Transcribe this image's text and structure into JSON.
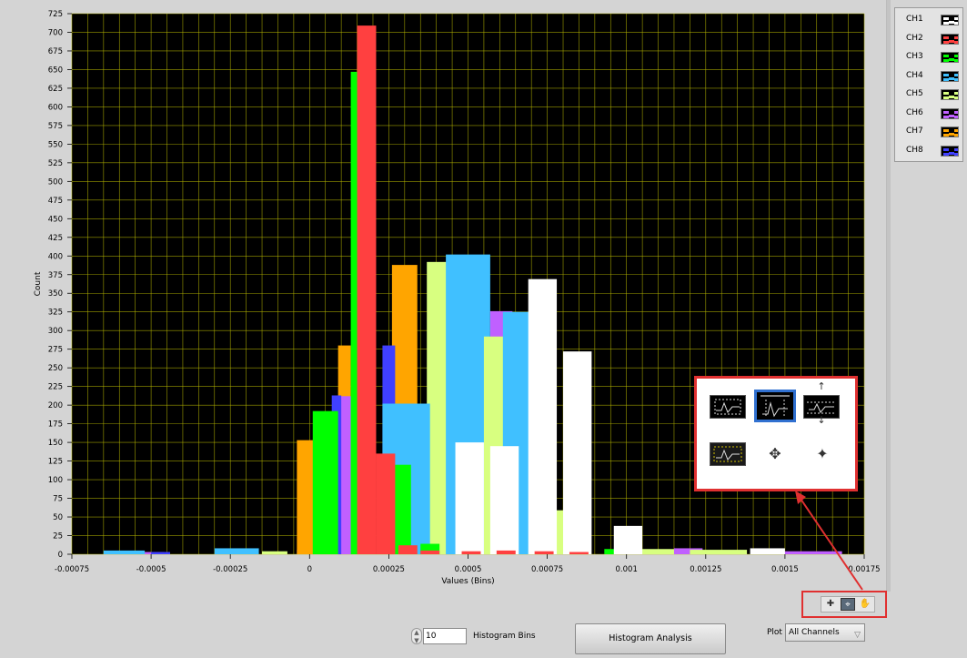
{
  "chart_data": {
    "type": "bar",
    "xlabel": "Values (Bins)",
    "ylabel": "Count",
    "xlim": [
      -0.00075,
      0.00175
    ],
    "ylim": [
      0,
      725
    ],
    "x_ticks": [
      "-0.00075",
      "-0.0005",
      "-0.00025",
      "0",
      "0.00025",
      "0.0005",
      "0.00075",
      "0.001",
      "0.00125",
      "0.0015",
      "0.00175"
    ],
    "y_ticks": [
      "0",
      "25",
      "50",
      "75",
      "100",
      "125",
      "150",
      "175",
      "200",
      "225",
      "250",
      "275",
      "300",
      "325",
      "350",
      "375",
      "400",
      "425",
      "450",
      "475",
      "500",
      "525",
      "550",
      "575",
      "600",
      "625",
      "650",
      "675",
      "700",
      "725"
    ],
    "grid": true,
    "background": "#000000",
    "grid_color": "#b8b800",
    "series": [
      {
        "name": "CH1",
        "color": "#ffffff",
        "bars": [
          {
            "x0": 0.00046,
            "x1": 0.00055,
            "y": 150
          },
          {
            "x0": 0.00057,
            "x1": 0.00066,
            "y": 145
          },
          {
            "x0": 0.00069,
            "x1": 0.00078,
            "y": 369
          },
          {
            "x0": 0.0008,
            "x1": 0.00089,
            "y": 272
          },
          {
            "x0": 0.00096,
            "x1": 0.00105,
            "y": 38
          },
          {
            "x0": 0.00139,
            "x1": 0.0015,
            "y": 8
          }
        ]
      },
      {
        "name": "CH2",
        "color": "#ff4040",
        "bars": [
          {
            "x0": 0.00015,
            "x1": 0.00021,
            "y": 709
          },
          {
            "x0": 0.00021,
            "x1": 0.00027,
            "y": 135
          },
          {
            "x0": 0.00028,
            "x1": 0.00034,
            "y": 12
          },
          {
            "x0": 0.00035,
            "x1": 0.00041,
            "y": 5
          },
          {
            "x0": 0.00048,
            "x1": 0.00054,
            "y": 4
          },
          {
            "x0": 0.00059,
            "x1": 0.00065,
            "y": 5
          },
          {
            "x0": 0.00071,
            "x1": 0.00077,
            "y": 4
          },
          {
            "x0": 0.00082,
            "x1": 0.00088,
            "y": 3
          }
        ]
      },
      {
        "name": "CH3",
        "color": "#00ff00",
        "bars": [
          {
            "x0": 1e-05,
            "x1": 9e-05,
            "y": 192
          },
          {
            "x0": 0.00013,
            "x1": 0.00016,
            "y": 647
          },
          {
            "x0": 0.00024,
            "x1": 0.00032,
            "y": 120
          },
          {
            "x0": 0.00035,
            "x1": 0.00041,
            "y": 14
          },
          {
            "x0": 0.00093,
            "x1": 0.00099,
            "y": 7
          },
          {
            "x0": 0.00107,
            "x1": 0.00113,
            "y": 5
          }
        ]
      },
      {
        "name": "CH4",
        "color": "#40c0ff",
        "bars": [
          {
            "x0": -0.00065,
            "x1": -0.00052,
            "y": 5
          },
          {
            "x0": -0.0003,
            "x1": -0.00016,
            "y": 8
          },
          {
            "x0": 0.00023,
            "x1": 0.00038,
            "y": 202
          },
          {
            "x0": 0.00043,
            "x1": 0.00057,
            "y": 402
          },
          {
            "x0": 0.00061,
            "x1": 0.00075,
            "y": 325
          },
          {
            "x0": 0.00075,
            "x1": 0.0009,
            "y": 34
          }
        ]
      },
      {
        "name": "CH5",
        "color": "#d8ff80",
        "bars": [
          {
            "x0": -0.00015,
            "x1": -7e-05,
            "y": 4
          },
          {
            "x0": -2e-05,
            "x1": 5e-05,
            "y": 10
          },
          {
            "x0": 0.00022,
            "x1": 0.0003,
            "y": 213
          },
          {
            "x0": 0.00037,
            "x1": 0.00045,
            "y": 392
          },
          {
            "x0": 0.00055,
            "x1": 0.00063,
            "y": 292
          },
          {
            "x0": 0.00076,
            "x1": 0.00085,
            "y": 59
          },
          {
            "x0": 0.00103,
            "x1": 0.00117,
            "y": 7
          },
          {
            "x0": 0.0012,
            "x1": 0.00138,
            "y": 6
          }
        ]
      },
      {
        "name": "CH6",
        "color": "#c060ff",
        "bars": [
          {
            "x0": -0.00053,
            "x1": -0.00046,
            "y": 3
          },
          {
            "x0": -4e-05,
            "x1": 2e-05,
            "y": 6
          },
          {
            "x0": 9e-05,
            "x1": 0.00014,
            "y": 212
          },
          {
            "x0": 0.0003,
            "x1": 0.00038,
            "y": 388
          },
          {
            "x0": 0.00057,
            "x1": 0.00064,
            "y": 326
          },
          {
            "x0": 0.00115,
            "x1": 0.00124,
            "y": 8
          },
          {
            "x0": 0.00148,
            "x1": 0.00168,
            "y": 4
          }
        ]
      },
      {
        "name": "CH7",
        "color": "#ffa500",
        "bars": [
          {
            "x0": -4e-05,
            "x1": 4e-05,
            "y": 153
          },
          {
            "x0": 9e-05,
            "x1": 0.00013,
            "y": 280
          },
          {
            "x0": 0.00026,
            "x1": 0.00034,
            "y": 388
          },
          {
            "x0": 0.00124,
            "x1": 0.00132,
            "y": 3
          }
        ]
      },
      {
        "name": "CH8",
        "color": "#4040ff",
        "bars": [
          {
            "x0": -0.0005,
            "x1": -0.00044,
            "y": 3
          },
          {
            "x0": 7e-05,
            "x1": 0.0001,
            "y": 213
          },
          {
            "x0": 0.00023,
            "x1": 0.00027,
            "y": 280
          },
          {
            "x0": 0.00048,
            "x1": 0.00052,
            "y": 3
          }
        ]
      }
    ],
    "draw_order": [
      [
        "CH7",
        1
      ],
      [
        "CH6",
        2
      ],
      [
        "CH7",
        2
      ],
      [
        "CH5",
        3
      ],
      [
        "CH8",
        2
      ],
      [
        "CH4",
        2
      ],
      [
        "CH4",
        3
      ],
      [
        "CH6",
        4
      ],
      [
        "CH5",
        4
      ],
      [
        "CH4",
        4
      ],
      [
        "CH5",
        5
      ],
      [
        "CH8",
        1
      ],
      [
        "CH6",
        1
      ],
      [
        "CH3",
        1
      ],
      [
        "CH6",
        0
      ],
      [
        "CH4",
        0
      ],
      [
        "CH5",
        0
      ],
      [
        "CH8",
        0
      ],
      [
        "CH4",
        1
      ],
      [
        "CH5",
        1
      ],
      [
        "CH3",
        2
      ],
      [
        "CH3",
        3
      ],
      [
        "CH8",
        3
      ],
      [
        "CH3",
        4
      ],
      [
        "CH3",
        5
      ],
      [
        "CH5",
        6
      ],
      [
        "CH6",
        5
      ],
      [
        "CH7",
        3
      ],
      [
        "CH5",
        7
      ],
      [
        "CH6",
        6
      ],
      [
        "CH7",
        0
      ],
      [
        "CH3",
        0
      ],
      [
        "CH2",
        0
      ],
      [
        "CH2",
        1
      ],
      [
        "CH2",
        2
      ],
      [
        "CH2",
        3
      ],
      [
        "CH1",
        0
      ],
      [
        "CH1",
        1
      ],
      [
        "CH1",
        2
      ],
      [
        "CH1",
        3
      ],
      [
        "CH1",
        4
      ],
      [
        "CH1",
        5
      ],
      [
        "CH2",
        4
      ],
      [
        "CH2",
        5
      ],
      [
        "CH2",
        6
      ],
      [
        "CH2",
        7
      ]
    ]
  },
  "legend": {
    "items": [
      {
        "label": "CH1",
        "color": "#ffffff"
      },
      {
        "label": "CH2",
        "color": "#ff4040"
      },
      {
        "label": "CH3",
        "color": "#00ff00"
      },
      {
        "label": "CH4",
        "color": "#40c0ff"
      },
      {
        "label": "CH5",
        "color": "#d8ff80"
      },
      {
        "label": "CH6",
        "color": "#c060ff"
      },
      {
        "label": "CH7",
        "color": "#ffa500"
      },
      {
        "label": "CH8",
        "color": "#4040ff"
      }
    ]
  },
  "controls": {
    "histogram_bins_value": "10",
    "histogram_bins_label": "Histogram Bins",
    "histogram_button_label": "Histogram Analysis",
    "plot_label": "Plot",
    "plot_selected": "All Channels"
  },
  "palette": {
    "buttons": [
      "cursor-move-icon",
      "zoom-icon",
      "pan-hand-icon"
    ],
    "zoom_options": [
      "zoom-rectangle-icon",
      "x-zoom-icon",
      "y-zoom-icon",
      "zoom-to-fit-icon",
      "zoom-in-point-icon",
      "zoom-out-point-icon"
    ],
    "highlight_color": "#e03030"
  }
}
